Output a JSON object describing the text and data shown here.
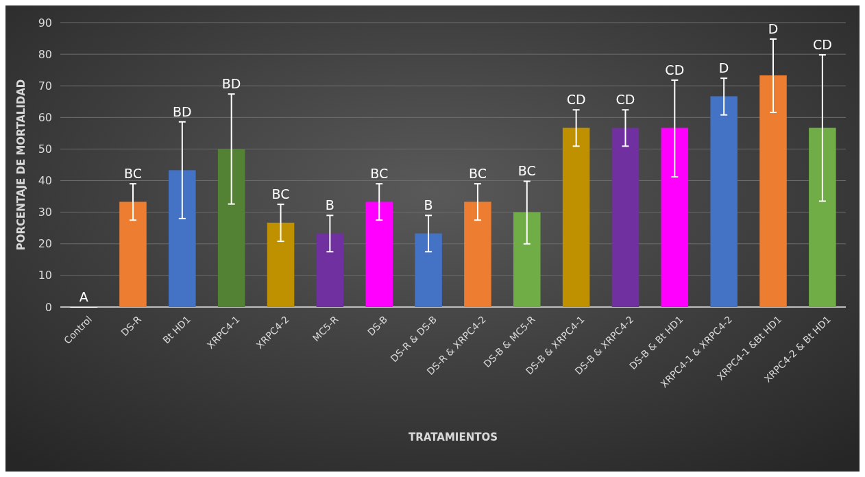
{
  "chart_data": {
    "type": "bar",
    "xlabel": "TRATAMIENTOS",
    "ylabel": "PORCENTAJE DE MORTALIDAD",
    "categories": [
      "Control",
      "DS-R",
      "Bt HD1",
      "XRPC4-1",
      "XRPC4-2",
      "MC5-R",
      "DS-B",
      "DS-R & DS-B",
      "DS-R & XRPC4-2",
      "DS-B & MC5-R",
      "DS-B & XRPC4-1",
      "DS-B & XRPC4-2",
      "DS-B & Bt HD1",
      "XRPC4-1 & XRPC4-2",
      "XRPC4-1 &Bt HD1",
      "XRPC4-2 & Bt HD1"
    ],
    "values": [
      0,
      33.3,
      43.3,
      50,
      26.7,
      23.3,
      33.3,
      23.3,
      33.3,
      30,
      56.7,
      56.7,
      56.7,
      66.7,
      73.3,
      56.7
    ],
    "colors": [
      "#ffffff",
      "#ed7d31",
      "#4472c4",
      "#548235",
      "#bf9000",
      "#7030a0",
      "#ff00ff",
      "#4472c4",
      "#ed7d31",
      "#70ad47",
      "#bf9000",
      "#7030a0",
      "#ff00ff",
      "#4472c4",
      "#ed7d31",
      "#70ad47"
    ],
    "errors": [
      null,
      [
        27.5,
        39
      ],
      [
        28,
        58.6
      ],
      [
        32.6,
        67.4
      ],
      [
        20.8,
        32.5
      ],
      [
        17.5,
        29
      ],
      [
        27.5,
        39
      ],
      [
        17.5,
        29
      ],
      [
        27.5,
        39
      ],
      [
        20,
        39.8
      ],
      [
        50.9,
        62.4
      ],
      [
        50.9,
        62.4
      ],
      [
        41.2,
        71.8
      ],
      [
        60.8,
        72.4
      ],
      [
        61.6,
        84.8
      ],
      [
        33.5,
        79.8
      ]
    ],
    "annotations": [
      "A",
      "BC",
      "BD",
      "BD",
      "BC",
      "B",
      "BC",
      "B",
      "BC",
      "BC",
      "CD",
      "CD",
      "CD",
      "D",
      "D",
      "CD"
    ],
    "ylim": [
      0,
      90
    ],
    "yticks": [
      0,
      10,
      20,
      30,
      40,
      50,
      60,
      70,
      80,
      90
    ],
    "grid": "y"
  }
}
